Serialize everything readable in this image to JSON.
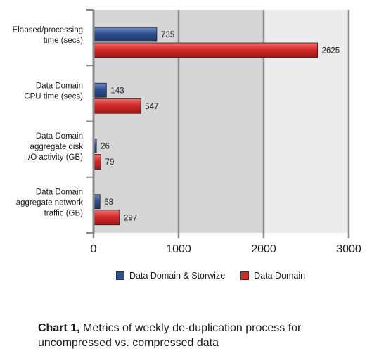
{
  "chart_data": {
    "type": "bar",
    "orientation": "horizontal",
    "categories": [
      [
        "Elapsed/processing",
        "time (secs)"
      ],
      [
        "Data Domain",
        "CPU time (secs)"
      ],
      [
        "Data Domain",
        "aggregate disk",
        "I/O activity (GB)"
      ],
      [
        "Data Domain",
        "aggregate network",
        "traffic (GB)"
      ]
    ],
    "series": [
      {
        "name": "Data Domain & Storwize",
        "color": "#2e4f8f",
        "values": [
          735,
          143,
          26,
          68
        ]
      },
      {
        "name": "Data Domain",
        "color": "#d42a2a",
        "values": [
          2625,
          547,
          79,
          297
        ]
      }
    ],
    "xlim": [
      0,
      3000
    ],
    "xticks": [
      0,
      1000,
      2000,
      3000
    ],
    "xtick_labels": [
      "0",
      "1000",
      "2000",
      "3000"
    ],
    "grid": true,
    "legend_position": "bottom"
  },
  "caption": {
    "bold": "Chart 1,",
    "text": " Metrics of weekly de-duplication process for uncompressed vs. compressed data"
  }
}
